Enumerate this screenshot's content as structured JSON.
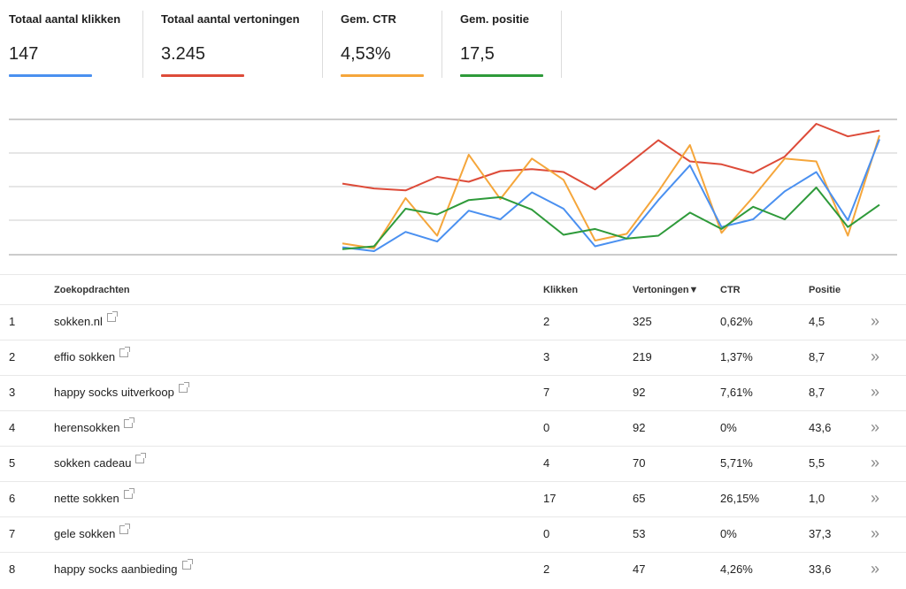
{
  "metrics": [
    {
      "label": "Totaal aantal klikken",
      "value": "147",
      "color": "#4a90f0"
    },
    {
      "label": "Totaal aantal vertoningen",
      "value": "3.245",
      "color": "#dd4b39"
    },
    {
      "label": "Gem. CTR",
      "value": "4,53%",
      "color": "#f5a63b"
    },
    {
      "label": "Gem. positie",
      "value": "17,5",
      "color": "#2e9a3a"
    }
  ],
  "chart_data": {
    "type": "line",
    "grid": true,
    "series": [
      {
        "color": "#dd4b39",
        "values": [
          7.0,
          6.5,
          6.3,
          7.7,
          7.2,
          8.3,
          8.5,
          8.2,
          6.4,
          8.9,
          11.5,
          9.3,
          9.0,
          8.1,
          9.8,
          13.2,
          11.9,
          12.5
        ]
      },
      {
        "color": "#f5a63b",
        "values": [
          0.8,
          0.3,
          5.5,
          1.6,
          10.0,
          5.4,
          9.6,
          7.4,
          1.1,
          1.8,
          6.2,
          11.0,
          1.9,
          5.6,
          9.6,
          9.3,
          1.6,
          12.0
        ]
      },
      {
        "color": "#4a90f0",
        "values": [
          0.4,
          0.0,
          2.0,
          1.0,
          4.2,
          3.3,
          6.1,
          4.4,
          0.5,
          1.3,
          5.3,
          8.9,
          2.5,
          3.3,
          6.2,
          8.2,
          3.2,
          11.6
        ]
      },
      {
        "color": "#2e9a3a",
        "values": [
          0.2,
          0.5,
          4.4,
          3.8,
          5.3,
          5.6,
          4.3,
          1.7,
          2.3,
          1.3,
          1.6,
          4.0,
          2.3,
          4.6,
          3.3,
          6.6,
          2.5,
          4.8
        ]
      }
    ]
  },
  "table": {
    "headers": {
      "query": "Zoekopdrachten",
      "clicks": "Klikken",
      "impressions": "Vertoningen▼",
      "ctr": "CTR",
      "position": "Positie"
    },
    "rows": [
      {
        "index": "1",
        "query": "sokken.nl",
        "clicks": "2",
        "impressions": "325",
        "ctr": "0,62%",
        "position": "4,5"
      },
      {
        "index": "2",
        "query": "effio sokken",
        "clicks": "3",
        "impressions": "219",
        "ctr": "1,37%",
        "position": "8,7"
      },
      {
        "index": "3",
        "query": "happy socks uitverkoop",
        "clicks": "7",
        "impressions": "92",
        "ctr": "7,61%",
        "position": "8,7"
      },
      {
        "index": "4",
        "query": "herensokken",
        "clicks": "0",
        "impressions": "92",
        "ctr": "0%",
        "position": "43,6"
      },
      {
        "index": "5",
        "query": "sokken cadeau",
        "clicks": "4",
        "impressions": "70",
        "ctr": "5,71%",
        "position": "5,5"
      },
      {
        "index": "6",
        "query": "nette sokken",
        "clicks": "17",
        "impressions": "65",
        "ctr": "26,15%",
        "position": "1,0"
      },
      {
        "index": "7",
        "query": "gele sokken",
        "clicks": "0",
        "impressions": "53",
        "ctr": "0%",
        "position": "37,3"
      },
      {
        "index": "8",
        "query": "happy socks aanbieding",
        "clicks": "2",
        "impressions": "47",
        "ctr": "4,26%",
        "position": "33,6"
      }
    ],
    "more_glyph": "»",
    "row_icons": [
      "external-link-icon",
      "chevron-right-double-icon"
    ]
  }
}
